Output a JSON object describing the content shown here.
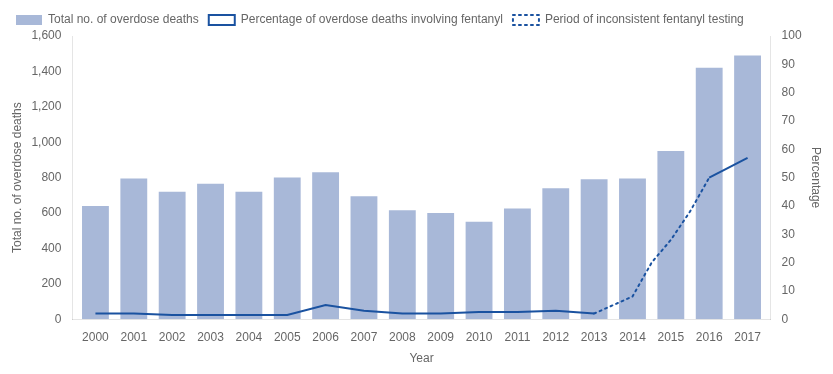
{
  "chart_data": {
    "type": "bar",
    "xlabel": "Year",
    "ylabel": "Total no. of overdose deaths",
    "y2label": "Percentage",
    "x": [
      2000,
      2001,
      2002,
      2003,
      2004,
      2005,
      2006,
      2007,
      2008,
      2009,
      2010,
      2011,
      2012,
      2013,
      2014,
      2015,
      2016,
      2017
    ],
    "xlim": [
      1999.4,
      2017.6
    ],
    "xticks": [
      2000,
      2001,
      2002,
      2003,
      2004,
      2005,
      2006,
      2007,
      2008,
      2009,
      2010,
      2011,
      2012,
      2013,
      2014,
      2015,
      2016,
      2017
    ],
    "ylim": [
      0,
      1600
    ],
    "yticks": [
      0,
      200,
      400,
      600,
      800,
      {
        "value": 1000,
        "label": "1,000"
      },
      {
        "value": 1200,
        "label": "1,200"
      },
      {
        "value": 1400,
        "label": "1,400"
      },
      {
        "value": 1600,
        "label": "1,600"
      }
    ],
    "y2lim": [
      0,
      100
    ],
    "y2ticks": [
      0,
      10,
      20,
      30,
      40,
      50,
      60,
      70,
      80,
      90,
      100
    ],
    "grid": false,
    "legend": "upper left",
    "series": [
      {
        "name": "Total no. of overdose deaths",
        "type": "bar",
        "color": "#a8b8d8",
        "values": [
          640,
          795,
          720,
          765,
          720,
          800,
          830,
          695,
          615,
          600,
          550,
          625,
          740,
          790,
          795,
          950,
          1420,
          1490
        ]
      },
      {
        "name": "Percentage of overdose deaths involving fentanyl",
        "type": "line",
        "line_style": "solid",
        "color": "#1a52a0",
        "axis": "y2",
        "x": [
          2000,
          2001,
          2002,
          2003,
          2004,
          2005,
          2006,
          2007,
          2008,
          2009,
          2010,
          2011,
          2012,
          2013
        ],
        "values": [
          2,
          2,
          1.5,
          1.5,
          1.5,
          1.5,
          5,
          3,
          2,
          2,
          2.5,
          2.5,
          3,
          2
        ]
      },
      {
        "name": "Period of inconsistent fentanyl testing",
        "type": "line",
        "line_style": "dotted",
        "color": "#1a52a0",
        "axis": "y2",
        "x": [
          2013,
          2013.5,
          2014,
          2014.5,
          2015,
          2015.5,
          2016
        ],
        "values": [
          2,
          5,
          8,
          20,
          28,
          38,
          50
        ]
      },
      {
        "name": "Percentage of overdose deaths involving fentanyl",
        "type": "line",
        "line_style": "solid",
        "color": "#1a52a0",
        "axis": "y2",
        "x": [
          2016,
          2017
        ],
        "values": [
          50,
          57
        ]
      }
    ]
  }
}
